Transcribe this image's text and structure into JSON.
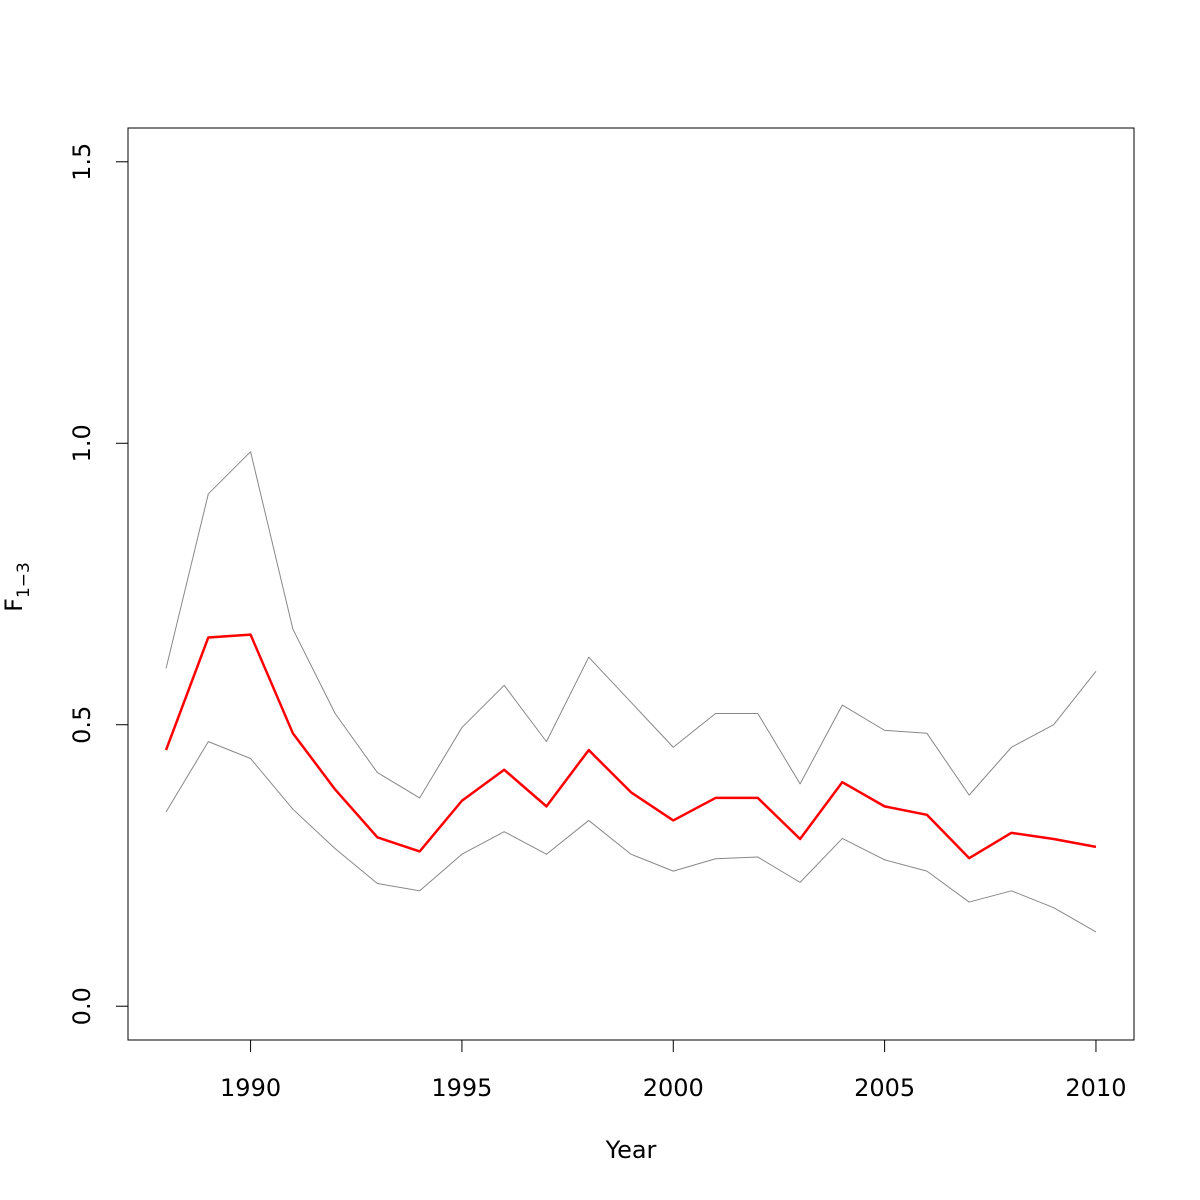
{
  "chart_data": {
    "type": "line",
    "xlabel": "Year",
    "ylabel": "F",
    "ylabel_subscript": "1−3",
    "xlim": [
      1987.1,
      2010.9
    ],
    "ylim": [
      -0.06,
      1.56
    ],
    "xticks": [
      1990,
      1995,
      2000,
      2005,
      2010
    ],
    "yticks": [
      0.0,
      0.5,
      1.0,
      1.5
    ],
    "ytick_labels": [
      "0.0",
      "0.5",
      "1.0",
      "1.5"
    ],
    "grid": false,
    "x": [
      1988,
      1989,
      1990,
      1991,
      1992,
      1993,
      1994,
      1995,
      1996,
      1997,
      1998,
      1999,
      2000,
      2001,
      2002,
      2003,
      2004,
      2005,
      2006,
      2007,
      2008,
      2009,
      2010
    ],
    "series": [
      {
        "role": "estimate",
        "color": "#ff0000",
        "values": [
          0.455,
          0.655,
          0.66,
          0.485,
          0.385,
          0.3,
          0.275,
          0.365,
          0.42,
          0.355,
          0.455,
          0.38,
          0.33,
          0.37,
          0.37,
          0.297,
          0.398,
          0.355,
          0.34,
          0.263,
          0.308,
          0.297,
          0.283
        ]
      },
      {
        "role": "upper-bound",
        "color": "#888888",
        "values": [
          0.6,
          0.91,
          0.985,
          0.67,
          0.52,
          0.415,
          0.37,
          0.495,
          0.57,
          0.47,
          0.62,
          0.54,
          0.46,
          0.52,
          0.52,
          0.395,
          0.535,
          0.49,
          0.485,
          0.375,
          0.46,
          0.5,
          0.595
        ]
      },
      {
        "role": "lower-bound",
        "color": "#888888",
        "values": [
          0.345,
          0.47,
          0.44,
          0.35,
          0.28,
          0.218,
          0.205,
          0.27,
          0.31,
          0.27,
          0.33,
          0.27,
          0.24,
          0.262,
          0.265,
          0.22,
          0.298,
          0.26,
          0.24,
          0.185,
          0.205,
          0.175,
          0.132
        ]
      }
    ]
  }
}
